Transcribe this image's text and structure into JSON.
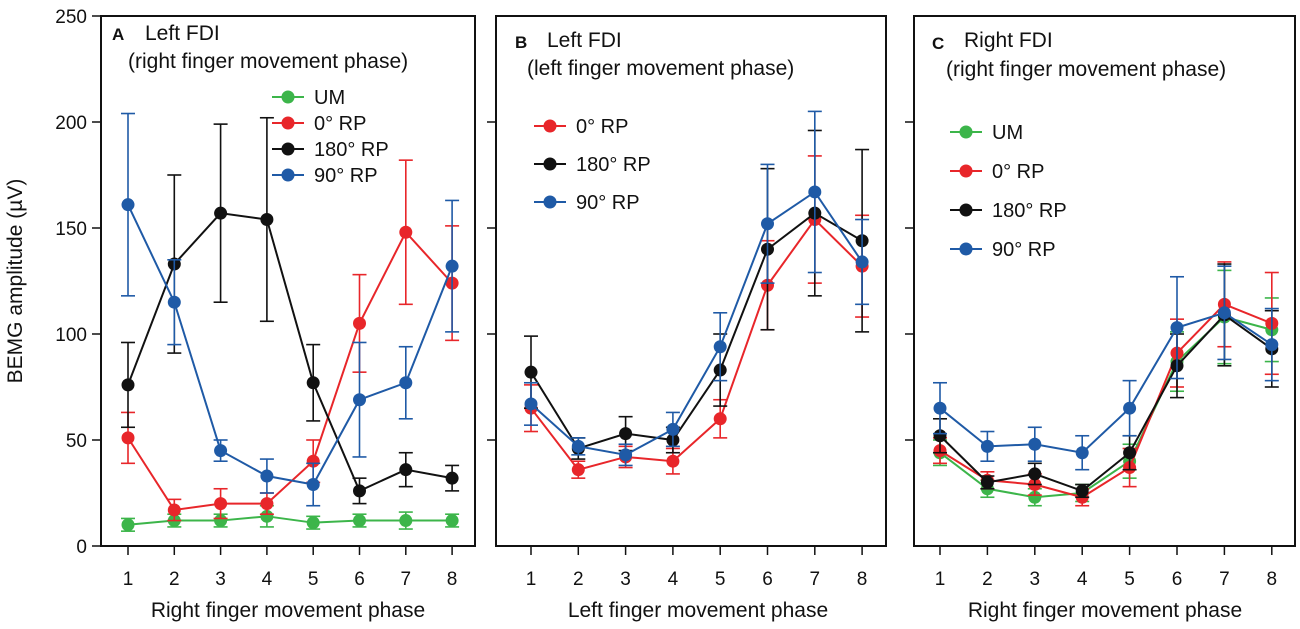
{
  "figure": {
    "y_axis_label": "BEMG amplitude (µV)",
    "y_ticks": [
      0,
      50,
      100,
      150,
      200,
      250
    ],
    "x_ticks": [
      1,
      2,
      3,
      4,
      5,
      6,
      7,
      8
    ]
  },
  "colors": {
    "UM": "#3cb54a",
    "0° RP": "#e8262a",
    "180° RP": "#111111",
    "90° RP": "#1f5aa6"
  },
  "chart_data": [
    {
      "type": "line",
      "panel_letter": "A",
      "title_line1": "Left FDI",
      "title_line2": "(right finger movement phase)",
      "xlabel": "Right finger movement phase",
      "ylabel": "BEMG amplitude (µV)",
      "ylim": [
        0,
        250
      ],
      "x": [
        1,
        2,
        3,
        4,
        5,
        6,
        7,
        8
      ],
      "legend": [
        "UM",
        "0° RP",
        "180° RP",
        "90° RP"
      ],
      "series": [
        {
          "name": "UM",
          "values": [
            10,
            12,
            12,
            14,
            11,
            12,
            12,
            12
          ],
          "errors": [
            3,
            3,
            3,
            5,
            3,
            3,
            4,
            3
          ]
        },
        {
          "name": "0° RP",
          "values": [
            51,
            17,
            20,
            20,
            40,
            105,
            148,
            124
          ],
          "errors": [
            12,
            5,
            7,
            5,
            10,
            23,
            34,
            27
          ]
        },
        {
          "name": "180° RP",
          "values": [
            76,
            133,
            157,
            154,
            77,
            26,
            36,
            32
          ],
          "errors": [
            20,
            42,
            42,
            48,
            18,
            6,
            8,
            6
          ]
        },
        {
          "name": "90° RP",
          "values": [
            161,
            115,
            45,
            33,
            29,
            69,
            77,
            132
          ],
          "errors": [
            43,
            20,
            5,
            8,
            10,
            27,
            17,
            31
          ]
        }
      ]
    },
    {
      "type": "line",
      "panel_letter": "B",
      "title_line1": "Left FDI",
      "title_line2": "(left finger movement phase)",
      "xlabel": "Left finger movement phase",
      "ylim": [
        0,
        250
      ],
      "x": [
        1,
        2,
        3,
        4,
        5,
        6,
        7,
        8
      ],
      "legend": [
        "0° RP",
        "180° RP",
        "90° RP"
      ],
      "series": [
        {
          "name": "0° RP",
          "values": [
            65,
            36,
            42,
            40,
            60,
            123,
            154,
            132
          ],
          "errors": [
            11,
            4,
            5,
            6,
            9,
            21,
            30,
            24
          ]
        },
        {
          "name": "180° RP",
          "values": [
            82,
            46,
            53,
            50,
            83,
            140,
            157,
            144
          ],
          "errors": [
            17,
            5,
            8,
            6,
            17,
            38,
            39,
            43
          ]
        },
        {
          "name": "90° RP",
          "values": [
            67,
            47,
            43,
            55,
            94,
            152,
            167,
            134
          ],
          "errors": [
            10,
            4,
            5,
            8,
            16,
            28,
            38,
            20
          ]
        }
      ]
    },
    {
      "type": "line",
      "panel_letter": "C",
      "title_line1": "Right FDI",
      "title_line2": "(right finger movement phase)",
      "xlabel": "Right finger movement phase",
      "ylim": [
        0,
        250
      ],
      "x": [
        1,
        2,
        3,
        4,
        5,
        6,
        7,
        8
      ],
      "legend": [
        "UM",
        "0° RP",
        "180° RP",
        "90° RP"
      ],
      "series": [
        {
          "name": "UM",
          "values": [
            44,
            27,
            23,
            25,
            40,
            87,
            108,
            102
          ],
          "errors": [
            6,
            4,
            4,
            4,
            8,
            14,
            22,
            15
          ]
        },
        {
          "name": "0° RP",
          "values": [
            45,
            31,
            29,
            23,
            37,
            91,
            114,
            105
          ],
          "errors": [
            6,
            4,
            5,
            4,
            9,
            16,
            20,
            24
          ]
        },
        {
          "name": "180° RP",
          "values": [
            52,
            30,
            34,
            26,
            44,
            85,
            109,
            93
          ],
          "errors": [
            8,
            3,
            5,
            3,
            8,
            15,
            24,
            18
          ]
        },
        {
          "name": "90° RP",
          "values": [
            65,
            47,
            48,
            44,
            65,
            103,
            110,
            95
          ],
          "errors": [
            12,
            7,
            8,
            8,
            13,
            24,
            22,
            17
          ]
        }
      ]
    }
  ]
}
